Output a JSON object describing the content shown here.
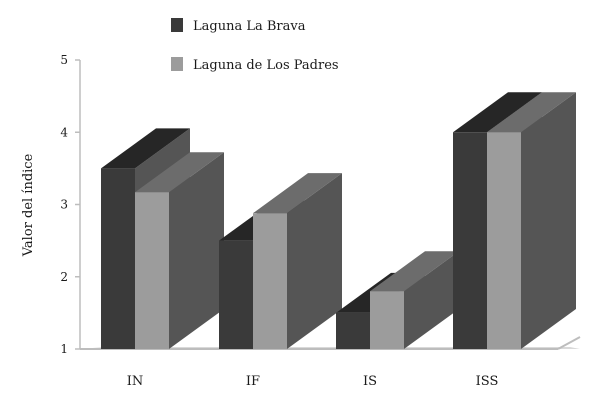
{
  "chart_data": {
    "type": "bar",
    "title": "",
    "xlabel": "",
    "ylabel": "Valor del índice",
    "ylim": [
      1,
      5
    ],
    "yticks": [
      1,
      2,
      3,
      4,
      5
    ],
    "categories": [
      "IN",
      "IF",
      "IS",
      "ISS"
    ],
    "series": [
      {
        "name": "Laguna La Brava",
        "values": [
          3.5,
          2.5,
          1.5,
          4.0
        ]
      },
      {
        "name": "Laguna de Los Padres",
        "values": [
          3.17,
          2.88,
          1.8,
          4.0
        ]
      }
    ],
    "colors": {
      "series_1_front": "#3a3a3a",
      "series_1_top": "#262626",
      "series_2_front": "#9c9c9c",
      "series_2_top": "#6c6c6c",
      "side": "#555555",
      "axis": "#bdbdbd"
    },
    "legend_position": "top-left",
    "grid": false,
    "three_d": true
  }
}
